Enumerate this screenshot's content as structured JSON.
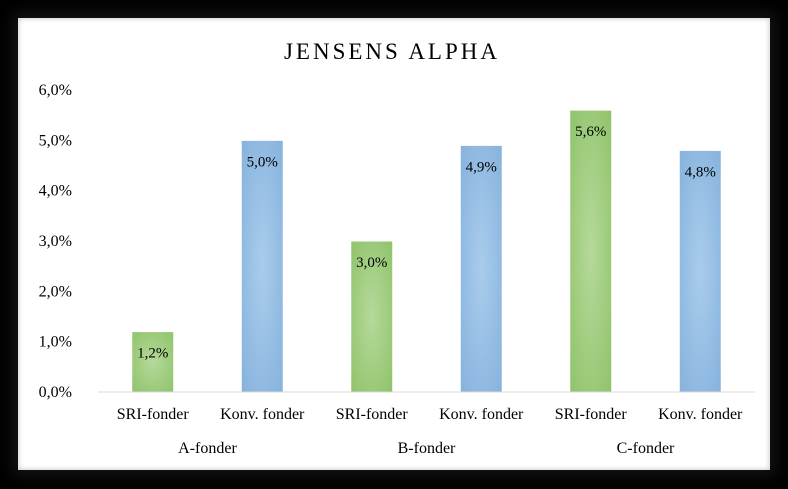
{
  "chart_data": {
    "type": "bar",
    "title": "JENSENS ALPHA",
    "xlabel": "",
    "ylabel": "",
    "ylim": [
      0,
      6
    ],
    "yticks": [
      "0,0%",
      "1,0%",
      "2,0%",
      "3,0%",
      "4,0%",
      "5,0%",
      "6,0%"
    ],
    "groups": [
      "A-fonder",
      "B-fonder",
      "C-fonder"
    ],
    "categories": [
      "SRI-fonder",
      "Konv. fonder",
      "SRI-fonder",
      "Konv. fonder",
      "SRI-fonder",
      "Konv. fonder"
    ],
    "values": [
      1.2,
      5.0,
      3.0,
      4.9,
      5.6,
      4.8
    ],
    "value_labels": [
      "1,2%",
      "5,0%",
      "3,0%",
      "4,9%",
      "5,6%",
      "4,8%"
    ],
    "bar_kinds": [
      "sri",
      "konv",
      "sri",
      "konv",
      "sri",
      "konv"
    ],
    "colors": {
      "sri": "#a8d08d",
      "konv": "#9dc3e6",
      "border": "#ffffff",
      "background": "#000000"
    },
    "grid": false,
    "legend": "none"
  }
}
